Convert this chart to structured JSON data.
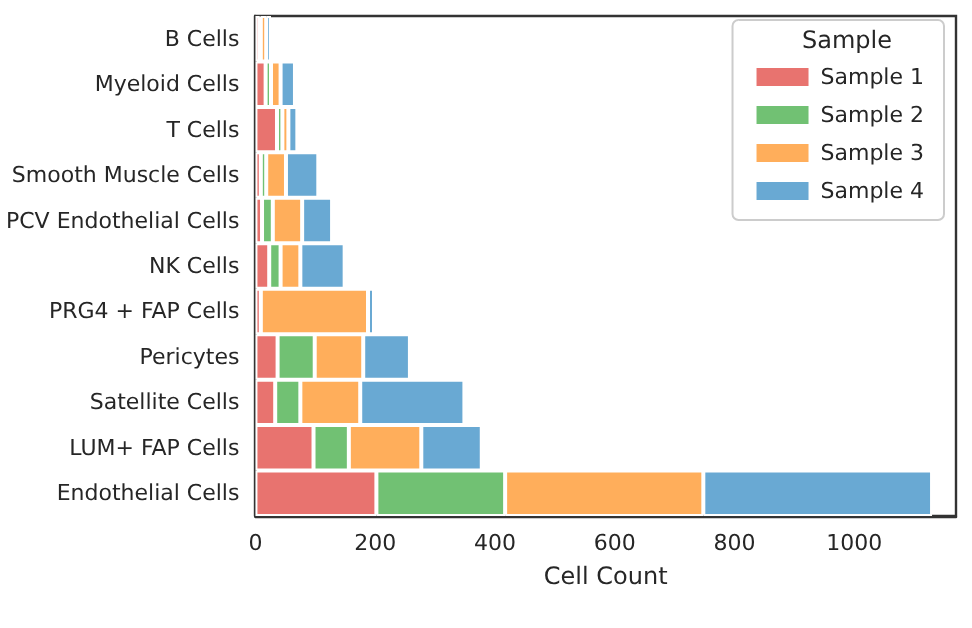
{
  "chart_data": {
    "type": "bar",
    "orientation": "horizontal",
    "stacked": true,
    "xlabel": "Cell Count",
    "legend_title": "Sample",
    "legend": "top right",
    "grid": false,
    "categories": [
      "B Cells",
      "Myeloid Cells",
      "T Cells",
      "Smooth Muscle Cells",
      "PCV Endothelial Cells",
      "NK Cells",
      "PRG4 + FAP Cells",
      "Pericytes",
      "Satellite Cells",
      "LUM+ FAP Cells",
      "Endothelial Cells"
    ],
    "xlim": [
      0,
      1170
    ],
    "xticks": [
      0,
      200,
      400,
      600,
      800,
      1000
    ],
    "series": [
      {
        "name": "Sample 1",
        "color": "#e8736f",
        "values": [
          7,
          17,
          36,
          9,
          11,
          23,
          9,
          37,
          33,
          97,
          202
        ]
      },
      {
        "name": "Sample 2",
        "color": "#71c173",
        "values": [
          2,
          9,
          9,
          9,
          18,
          19,
          0,
          62,
          42,
          59,
          215
        ]
      },
      {
        "name": "Sample 3",
        "color": "#ffae5b",
        "values": [
          9,
          16,
          10,
          33,
          49,
          33,
          179,
          81,
          100,
          121,
          331
        ]
      },
      {
        "name": "Sample 4",
        "color": "#69a9d3",
        "values": [
          8,
          24,
          15,
          54,
          50,
          74,
          10,
          78,
          174,
          101,
          382
        ]
      }
    ]
  }
}
